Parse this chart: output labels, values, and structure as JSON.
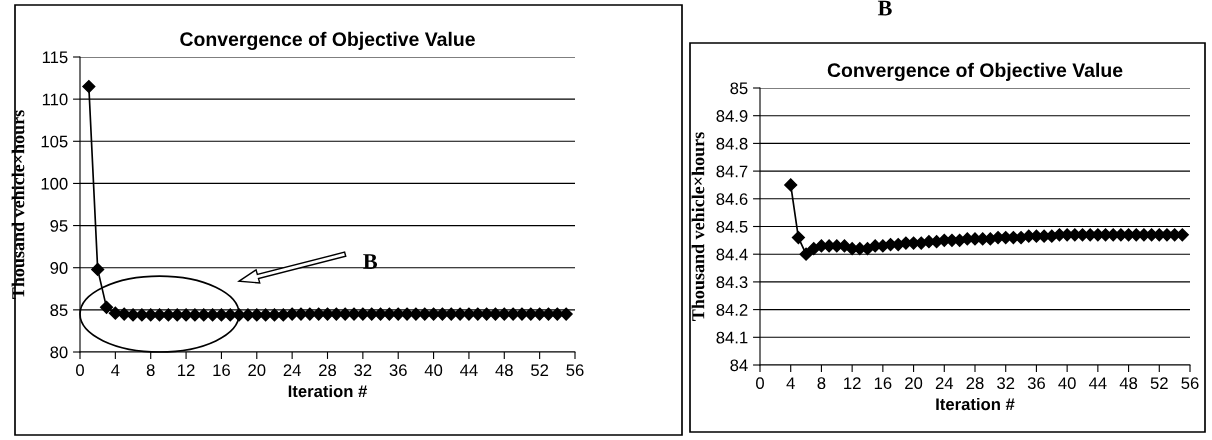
{
  "chart_data": [
    {
      "type": "line",
      "title": "Convergence of Objective Value",
      "xlabel": "Iteration #",
      "ylabel": "Thousand vehicle×hours",
      "annotations": [
        "B"
      ],
      "x": [
        1,
        2,
        3,
        4,
        5,
        6,
        7,
        8,
        9,
        10,
        11,
        12,
        13,
        14,
        15,
        16,
        17,
        18,
        19,
        20,
        21,
        22,
        23,
        24,
        25,
        26,
        27,
        28,
        29,
        30,
        31,
        32,
        33,
        34,
        35,
        36,
        37,
        38,
        39,
        40,
        41,
        42,
        43,
        44,
        45,
        46,
        47,
        48,
        49,
        50,
        51,
        52,
        53,
        54,
        55
      ],
      "series": [
        {
          "color": "#000000",
          "values": [
            111.5,
            89.8,
            85.3,
            84.6,
            84.5,
            84.4,
            84.4,
            84.4,
            84.4,
            84.4,
            84.4,
            84.4,
            84.4,
            84.4,
            84.4,
            84.4,
            84.4,
            84.4,
            84.4,
            84.4,
            84.4,
            84.4,
            84.4,
            84.5,
            84.5,
            84.5,
            84.5,
            84.5,
            84.5,
            84.5,
            84.5,
            84.5,
            84.5,
            84.5,
            84.5,
            84.5,
            84.5,
            84.5,
            84.5,
            84.5,
            84.5,
            84.5,
            84.5,
            84.5,
            84.5,
            84.5,
            84.5,
            84.5,
            84.5,
            84.5,
            84.5,
            84.5,
            84.5,
            84.5,
            84.5
          ]
        }
      ],
      "xlim": [
        0,
        56
      ],
      "xticks": [
        0,
        4,
        8,
        12,
        16,
        20,
        24,
        28,
        32,
        36,
        40,
        44,
        48,
        52,
        56
      ],
      "ylim": [
        80,
        115
      ],
      "yticks": [
        80,
        85,
        90,
        95,
        100,
        105,
        110,
        115
      ],
      "grid": "y",
      "legend": false,
      "marker": "diamond",
      "line_style": "solid"
    },
    {
      "type": "line",
      "title": "Convergence of Objective Value",
      "xlabel": "Iteration #",
      "ylabel": "Thousand vehicle×hours",
      "annotations": [
        "B"
      ],
      "x": [
        4,
        5,
        6,
        7,
        8,
        9,
        10,
        11,
        12,
        13,
        14,
        15,
        16,
        17,
        18,
        19,
        20,
        21,
        22,
        23,
        24,
        25,
        26,
        27,
        28,
        29,
        30,
        31,
        32,
        33,
        34,
        35,
        36,
        37,
        38,
        39,
        40,
        41,
        42,
        43,
        44,
        45,
        46,
        47,
        48,
        49,
        50,
        51,
        52,
        53,
        54,
        55
      ],
      "series": [
        {
          "color": "#000000",
          "values": [
            84.65,
            84.46,
            84.4,
            84.42,
            84.43,
            84.43,
            84.43,
            84.43,
            84.42,
            84.42,
            84.42,
            84.43,
            84.43,
            84.435,
            84.435,
            84.44,
            84.44,
            84.44,
            84.445,
            84.445,
            84.45,
            84.45,
            84.45,
            84.455,
            84.455,
            84.455,
            84.455,
            84.46,
            84.46,
            84.46,
            84.46,
            84.465,
            84.465,
            84.465,
            84.465,
            84.47,
            84.47,
            84.47,
            84.47,
            84.47,
            84.47,
            84.47,
            84.47,
            84.47,
            84.47,
            84.47,
            84.47,
            84.47,
            84.47,
            84.47,
            84.47,
            84.47
          ]
        }
      ],
      "xlim": [
        0,
        56
      ],
      "xticks": [
        0,
        4,
        8,
        12,
        16,
        20,
        24,
        28,
        32,
        36,
        40,
        44,
        48,
        52,
        56
      ],
      "ylim": [
        84,
        85
      ],
      "yticks": [
        84,
        84.1,
        84.2,
        84.3,
        84.4,
        84.5,
        84.6,
        84.7,
        84.8,
        84.9,
        85
      ],
      "grid": "y",
      "legend": false,
      "marker": "diamond",
      "line_style": "solid"
    }
  ]
}
